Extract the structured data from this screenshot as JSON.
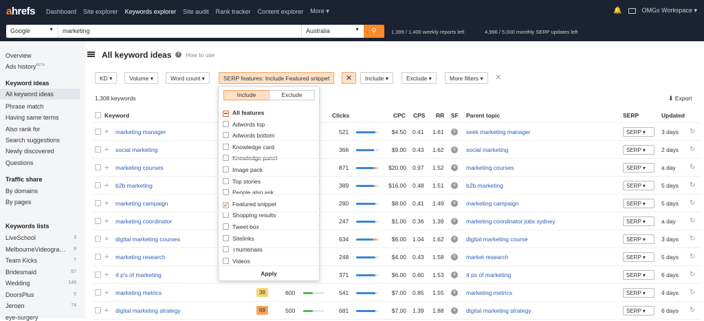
{
  "topnav": {
    "logo_a": "a",
    "logo_rest": "hrefs",
    "items": [
      "Dashboard",
      "Site explorer",
      "Keywords explorer",
      "Site audit",
      "Rank tracker",
      "Content explorer",
      "More ▾"
    ],
    "workspace": "OMGs Workspace ▾"
  },
  "search": {
    "engine": "Google",
    "keyword": "marketing",
    "country": "Australia",
    "weekly_reports": "1,399 / 1,400 weekly reports left",
    "serp_updates": "4,996 / 5,000 monthly SERP updates left"
  },
  "sidebar": {
    "overview": "Overview",
    "ads_history": "Ads history",
    "ads_beta": "BETA",
    "keyword_ideas_head": "Keyword ideas",
    "ideas": [
      "All keyword ideas",
      "Phrase match",
      "Having same terms",
      "Also rank for",
      "Search suggestions",
      "Newly discovered",
      "Questions"
    ],
    "traffic_head": "Traffic share",
    "traffic": [
      "By domains",
      "By pages"
    ],
    "lists_head": "Keywords lists",
    "lists": [
      {
        "name": "LiveSchool",
        "count": "3"
      },
      {
        "name": "MelbourneVideogra…",
        "count": "9"
      },
      {
        "name": "Team Kicks",
        "count": "7"
      },
      {
        "name": "Bridesmaid",
        "count": "57"
      },
      {
        "name": "Wedding",
        "count": "149"
      },
      {
        "name": "DoorsPlus",
        "count": "5"
      },
      {
        "name": "Jeroen",
        "count": "74"
      },
      {
        "name": "eye-surgery",
        "count": ""
      }
    ]
  },
  "main": {
    "title": "All keyword ideas",
    "how_to": "How to use",
    "keyword_count": "1,308 keywords",
    "export": "Export"
  },
  "filters": {
    "kd": "KD ▾",
    "volume": "Volume ▾",
    "word_count": "Word count ▾",
    "serp": "SERP features: Include Featured snippet",
    "include": "Include ▾",
    "exclude": "Exclude ▾",
    "more": "More filters ▾"
  },
  "columns": {
    "keyword": "Keyword",
    "clicks": "Clicks",
    "cpc": "CPC",
    "cps": "CPS",
    "rr": "RR",
    "sf": "SF",
    "parent": "Parent topic",
    "serp": "SERP",
    "updated": "Updated"
  },
  "rows": [
    {
      "keyword": "marketing manager",
      "kd": "",
      "volume": "",
      "clicks": "521",
      "clicks_pct": 0.85,
      "paid_pct": 0,
      "cpc": "$4.50",
      "cps": "0.41",
      "rr": "1.61",
      "sf": "5",
      "parent": "seek marketing manager",
      "serp": "SERP ▾",
      "updated": "3 days"
    },
    {
      "keyword": "social marketing",
      "kd": "",
      "volume": "",
      "clicks": "366",
      "clicks_pct": 0.8,
      "paid_pct": 0,
      "cpc": "$9.00",
      "cps": "0.43",
      "rr": "1.62",
      "sf": "5",
      "parent": "social marketing",
      "serp": "SERP ▾",
      "updated": "2 days"
    },
    {
      "keyword": "marketing courses",
      "kd": "",
      "volume": "",
      "clicks": "871",
      "clicks_pct": 0.78,
      "paid_pct": 0.12,
      "cpc": "$20.00",
      "cps": "0.97",
      "rr": "1.52",
      "sf": "4",
      "parent": "marketing courses",
      "serp": "SERP ▾",
      "updated": "a day"
    },
    {
      "keyword": "b2b marketing",
      "kd": "",
      "volume": "",
      "clicks": "389",
      "clicks_pct": 0.8,
      "paid_pct": 0.05,
      "cpc": "$16.00",
      "cps": "0.48",
      "rr": "1.51",
      "sf": "4",
      "parent": "b2b marketing",
      "serp": "SERP ▾",
      "updated": "5 days"
    },
    {
      "keyword": "marketing campaign",
      "kd": "",
      "volume": "",
      "clicks": "280",
      "clicks_pct": 0.85,
      "paid_pct": 0,
      "cpc": "$8.00",
      "cps": "0.41",
      "rr": "1.49",
      "sf": "4",
      "parent": "marketing campaign",
      "serp": "SERP ▾",
      "updated": "5 days"
    },
    {
      "keyword": "marketing coordinator",
      "kd": "",
      "volume": "",
      "clicks": "247",
      "clicks_pct": 0.85,
      "paid_pct": 0,
      "cpc": "$1.00",
      "cps": "0.36",
      "rr": "1.39",
      "sf": "5",
      "parent": "marketing coordinator jobs sydney",
      "serp": "SERP ▾",
      "updated": "a day"
    },
    {
      "keyword": "digital marketing courses",
      "kd": "",
      "volume": "",
      "clicks": "634",
      "clicks_pct": 0.76,
      "paid_pct": 0.15,
      "cpc": "$6.00",
      "cps": "1.04",
      "rr": "1.62",
      "sf": "4",
      "parent": "digital marketing course",
      "serp": "SERP ▾",
      "updated": "3 days"
    },
    {
      "keyword": "marketing research",
      "kd": "",
      "volume": "",
      "clicks": "248",
      "clicks_pct": 0.82,
      "paid_pct": 0.05,
      "cpc": "$4.00",
      "cps": "0.43",
      "rr": "1.58",
      "sf": "3",
      "parent": "market research",
      "serp": "SERP ▾",
      "updated": "5 days"
    },
    {
      "keyword": "4 p's of marketing",
      "kd": "",
      "volume": "",
      "clicks": "371",
      "clicks_pct": 0.85,
      "paid_pct": 0,
      "cpc": "$6.00",
      "cps": "0.60",
      "rr": "1.53",
      "sf": "4",
      "parent": "4 ps of marketing",
      "serp": "SERP ▾",
      "updated": "6 days"
    },
    {
      "keyword": "marketing metrics",
      "kd": "38",
      "volume": "600",
      "clicks": "541",
      "clicks_pct": 0.85,
      "paid_pct": 0,
      "cpc": "$7.00",
      "cps": "0.85",
      "rr": "1.55",
      "sf": "4",
      "parent": "marketing metrics",
      "serp": "SERP ▾",
      "updated": "4 days"
    },
    {
      "keyword": "digital marketing strategy",
      "kd": "69",
      "volume": "500",
      "clicks": "681",
      "clicks_pct": 0.85,
      "paid_pct": 0,
      "cpc": "$7.00",
      "cps": "1.39",
      "rr": "1.88",
      "sf": "4",
      "parent": "digital marketing strategy",
      "serp": "SERP ▾",
      "updated": "6 days"
    }
  ],
  "popup": {
    "tab_include": "Include",
    "tab_exclude": "Exclude",
    "options": [
      {
        "label": "All features",
        "state": "partial"
      },
      {
        "label": "Adwords top",
        "state": "off"
      },
      {
        "label": "Adwords bottom",
        "state": "off"
      },
      {
        "label": "Knowledge card",
        "state": "off"
      },
      {
        "label": "Knowledge panel",
        "state": "off"
      },
      {
        "label": "Image pack",
        "state": "off"
      },
      {
        "label": "Top stories",
        "state": "off"
      },
      {
        "label": "People also ask",
        "state": "off"
      },
      {
        "label": "Featured snippet",
        "state": "on"
      },
      {
        "label": "Shopping results",
        "state": "off"
      },
      {
        "label": "Tweet box",
        "state": "off"
      },
      {
        "label": "Sitelinks",
        "state": "off"
      },
      {
        "label": "Thumbnails",
        "state": "off"
      },
      {
        "label": "Videos",
        "state": "off"
      }
    ],
    "apply": "Apply"
  },
  "colors": {
    "nav_bg": "#1b2333",
    "accent": "#ff8a2b",
    "link": "#2a5bb8",
    "kd_yellow": "#f7d774",
    "kd_orange": "#f4a65b"
  }
}
